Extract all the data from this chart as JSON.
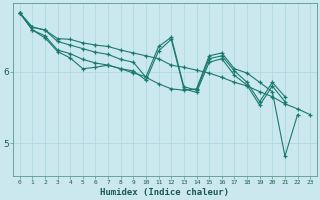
{
  "background_color": "#cce8ef",
  "grid_color": "#b0d8e0",
  "line_color": "#1a7a6e",
  "marker_color": "#1a7a6e",
  "xlabel": "Humidex (Indice chaleur)",
  "ylabel_ticks": [
    5,
    6
  ],
  "xlim": [
    -0.5,
    23.5
  ],
  "ylim": [
    4.55,
    6.95
  ],
  "xticks": [
    0,
    1,
    2,
    3,
    4,
    5,
    6,
    7,
    8,
    9,
    10,
    11,
    12,
    13,
    14,
    15,
    16,
    17,
    18,
    19,
    20,
    21,
    22,
    23
  ],
  "series": [
    [
      6.82,
      6.62,
      6.58,
      6.46,
      6.45,
      6.4,
      6.37,
      6.35,
      6.3,
      6.26,
      6.22,
      6.18,
      6.09,
      6.06,
      6.02,
      5.98,
      5.92,
      5.85,
      5.8,
      5.72,
      5.65,
      5.55,
      5.48,
      5.4
    ],
    [
      6.82,
      6.62,
      6.58,
      6.42,
      6.37,
      6.32,
      6.27,
      6.24,
      6.17,
      6.13,
      5.92,
      5.83,
      5.76,
      5.74,
      5.76,
      6.22,
      6.26,
      6.04,
      5.98,
      5.85,
      5.72,
      4.82,
      5.4,
      null
    ],
    [
      6.82,
      6.58,
      6.5,
      6.3,
      6.25,
      6.17,
      6.12,
      6.09,
      6.04,
      5.98,
      5.93,
      6.35,
      6.48,
      5.79,
      5.74,
      6.18,
      6.22,
      6.01,
      5.85,
      5.58,
      5.85,
      5.65,
      null,
      null
    ],
    [
      6.82,
      6.58,
      6.47,
      6.28,
      6.19,
      6.04,
      6.06,
      6.09,
      6.04,
      6.01,
      5.88,
      6.29,
      6.45,
      5.76,
      5.71,
      6.13,
      6.18,
      5.95,
      5.81,
      5.53,
      5.8,
      5.58,
      null,
      null
    ]
  ]
}
